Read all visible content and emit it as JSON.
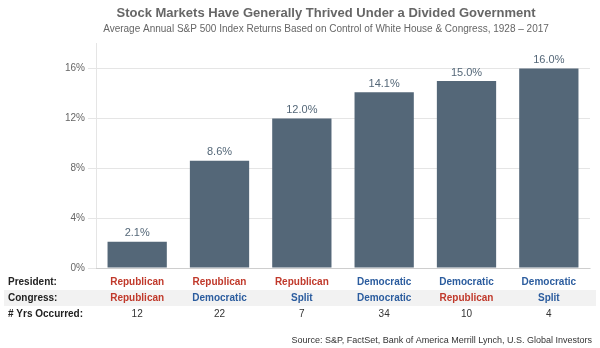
{
  "chart_data": {
    "type": "bar",
    "title": "Stock Markets Have Generally Thrived Under a Divided Government",
    "subtitle": "Average Annual S&P 500 Index Returns Based on Control of White House & Congress, 1928 – 2017",
    "categories": [
      null,
      null,
      null,
      null,
      null,
      null
    ],
    "values": [
      2.1,
      8.6,
      12.0,
      14.1,
      15.0,
      16.0
    ],
    "value_labels": [
      "2.1%",
      "8.6%",
      "12.0%",
      "14.1%",
      "15.0%",
      "16.0%"
    ],
    "data_labels": true,
    "color": "#546778",
    "ylim": [
      0,
      18.0
    ],
    "yticks": [
      {
        "value": 0,
        "label": "0%"
      },
      {
        "value": 4,
        "label": "4%"
      },
      {
        "value": 8,
        "label": "8%"
      },
      {
        "value": 12,
        "label": "12%"
      },
      {
        "value": 16,
        "label": "16%"
      }
    ],
    "grid": true,
    "tick_labels": "y",
    "table": {
      "rows": [
        {
          "label": "President:",
          "cells": [
            "Republican",
            "Republican",
            "Republican",
            "Democratic",
            "Democratic",
            "Democratic"
          ]
        },
        {
          "label": "Congress:",
          "cells": [
            "Republican",
            "Democratic",
            "Split",
            "Democratic",
            "Republican",
            "Split"
          ]
        },
        {
          "label": "# Yrs Occurred:",
          "cells": [
            "12",
            "22",
            "7",
            "34",
            "10",
            "4"
          ]
        }
      ],
      "colors": {
        "Republican": "#c0392b",
        "Democratic": "#2b5c9e",
        "Split": "#2b5c9e"
      }
    },
    "source": "Source: S&P, FactSet, Bank of America Merrill Lynch, U.S. Global Investors"
  }
}
